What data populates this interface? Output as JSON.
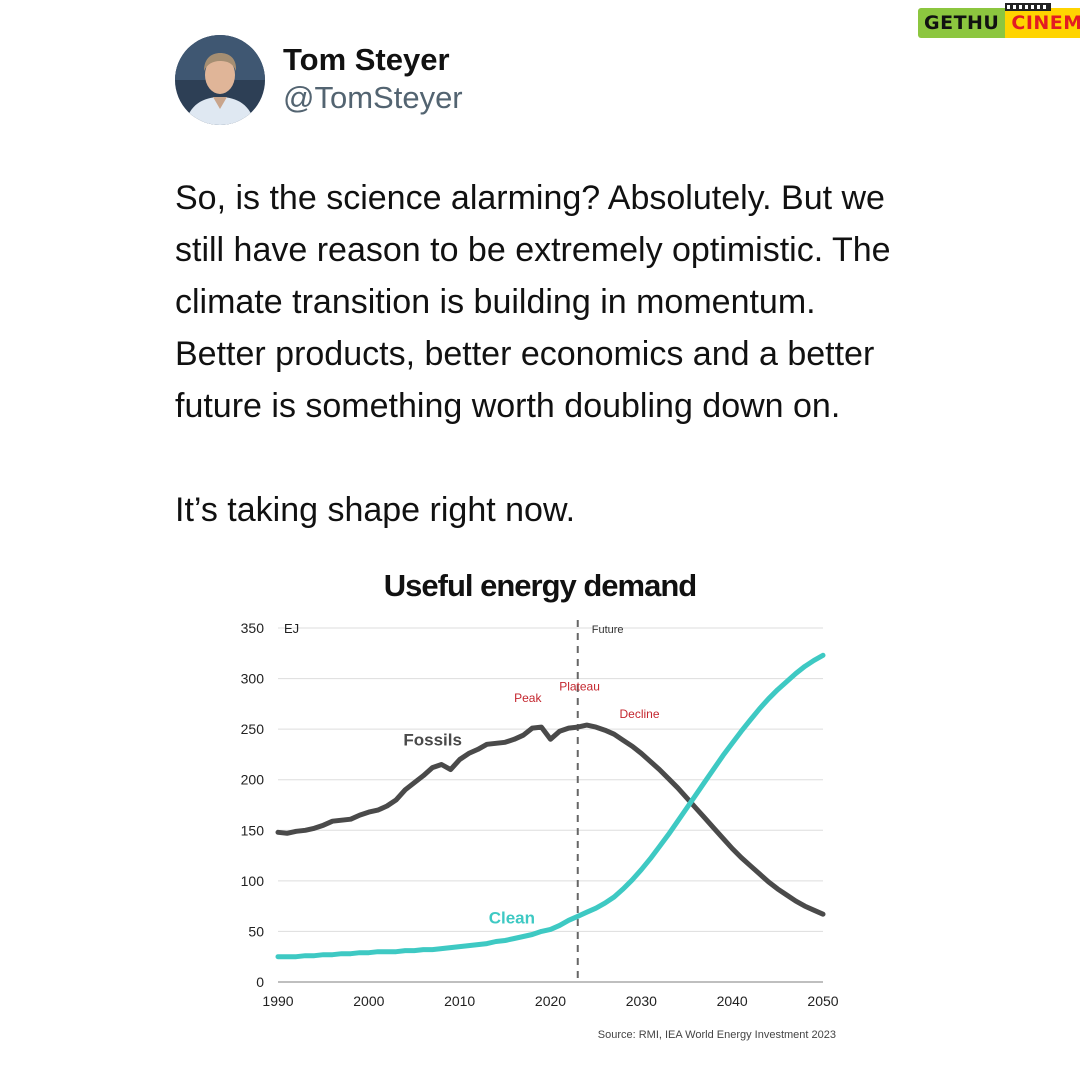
{
  "author": {
    "display_name": "Tom Steyer",
    "handle": "@TomSteyer"
  },
  "tweet": {
    "lines": [
      "So, is the science alarming? Absolutely. But we",
      "still have reason to be extremely optimistic. The",
      "climate transition is building in momentum.",
      "Better products, better economics and a better",
      "future is something worth doubling down on."
    ],
    "closing": "It’s taking shape right now."
  },
  "watermark": {
    "left": "GETHU",
    "right": "CINEMA"
  },
  "chart_data": {
    "type": "line",
    "title": "Useful energy demand",
    "ylabel": "EJ",
    "xlim": [
      1990,
      2050
    ],
    "ylim": [
      0,
      350
    ],
    "xticks": [
      1990,
      2000,
      2010,
      2020,
      2030,
      2040,
      2050
    ],
    "yticks": [
      0,
      50,
      100,
      150,
      200,
      250,
      300,
      350
    ],
    "grid": true,
    "divider_year": 2023,
    "divider_label": "Future",
    "annotations": [
      "Peak",
      "Plateau",
      "Decline"
    ],
    "source": "Source: RMI, IEA World Energy Investment 2023",
    "series": [
      {
        "name": "Fossils",
        "color": "#4a4a4a",
        "x": [
          1990,
          1991,
          1992,
          1993,
          1994,
          1995,
          1996,
          1997,
          1998,
          1999,
          2000,
          2001,
          2002,
          2003,
          2004,
          2005,
          2006,
          2007,
          2008,
          2009,
          2010,
          2011,
          2012,
          2013,
          2014,
          2015,
          2016,
          2017,
          2018,
          2019,
          2020,
          2021,
          2022,
          2023,
          2024,
          2025,
          2026,
          2027,
          2028,
          2029,
          2030,
          2031,
          2032,
          2033,
          2034,
          2035,
          2036,
          2037,
          2038,
          2039,
          2040,
          2041,
          2042,
          2043,
          2044,
          2045,
          2046,
          2047,
          2048,
          2049,
          2050
        ],
        "values": [
          148,
          147,
          149,
          150,
          152,
          155,
          159,
          160,
          161,
          165,
          168,
          170,
          174,
          180,
          190,
          197,
          204,
          212,
          215,
          210,
          220,
          226,
          230,
          235,
          236,
          237,
          240,
          244,
          251,
          252,
          240,
          248,
          251,
          252,
          254,
          252,
          249,
          245,
          239,
          233,
          226,
          218,
          210,
          201,
          192,
          182,
          172,
          162,
          152,
          142,
          132,
          123,
          115,
          107,
          99,
          92,
          86,
          80,
          75,
          71,
          67
        ]
      },
      {
        "name": "Clean",
        "color": "#3ec9c3",
        "x": [
          1990,
          1991,
          1992,
          1993,
          1994,
          1995,
          1996,
          1997,
          1998,
          1999,
          2000,
          2001,
          2002,
          2003,
          2004,
          2005,
          2006,
          2007,
          2008,
          2009,
          2010,
          2011,
          2012,
          2013,
          2014,
          2015,
          2016,
          2017,
          2018,
          2019,
          2020,
          2021,
          2022,
          2023,
          2024,
          2025,
          2026,
          2027,
          2028,
          2029,
          2030,
          2031,
          2032,
          2033,
          2034,
          2035,
          2036,
          2037,
          2038,
          2039,
          2040,
          2041,
          2042,
          2043,
          2044,
          2045,
          2046,
          2047,
          2048,
          2049,
          2050
        ],
        "values": [
          25,
          25,
          25,
          26,
          26,
          27,
          27,
          28,
          28,
          29,
          29,
          30,
          30,
          30,
          31,
          31,
          32,
          32,
          33,
          34,
          35,
          36,
          37,
          38,
          40,
          41,
          43,
          45,
          47,
          50,
          52,
          56,
          61,
          65,
          69,
          73,
          78,
          84,
          92,
          101,
          111,
          122,
          134,
          146,
          159,
          172,
          185,
          198,
          211,
          224,
          236,
          248,
          259,
          270,
          280,
          289,
          297,
          305,
          312,
          318,
          323
        ]
      }
    ]
  }
}
